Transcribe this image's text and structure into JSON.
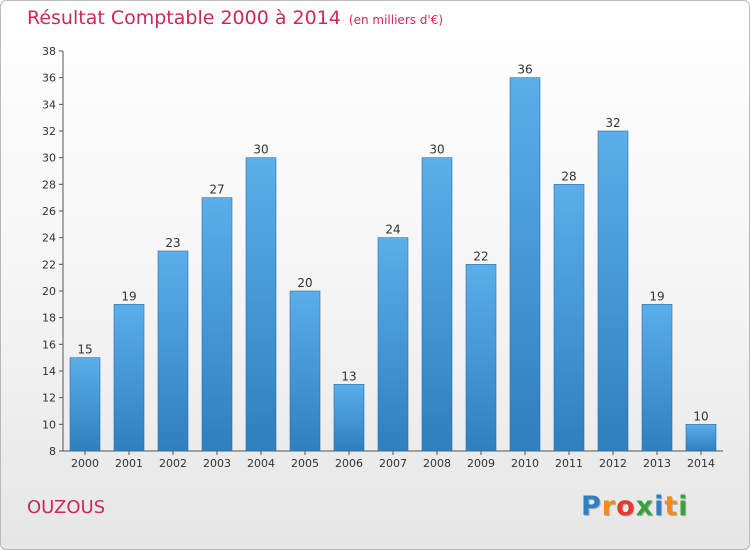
{
  "title": "Résultat Comptable 2000 à 2014",
  "subtitle": "(en milliers d'€)",
  "commune": "OUZOUS",
  "logo": {
    "letters": [
      "P",
      "r",
      "o",
      "x",
      "i",
      "t",
      "i"
    ],
    "colors": [
      "#2e7fc6",
      "#f08a1c",
      "#e23b2e",
      "#3aa13a",
      "#2e7fc6",
      "#f08a1c",
      "#3aa13a"
    ]
  },
  "colors": {
    "bar_top": "#5aaeea",
    "bar_bottom": "#2f7fc0",
    "bar_edge": "#2a6fa8",
    "axis": "#555555",
    "title": "#cc2a56"
  },
  "chart_data": {
    "type": "bar",
    "title": "Résultat Comptable 2000 à 2014",
    "subtitle": "(en milliers d'€)",
    "categories": [
      "2000",
      "2001",
      "2002",
      "2003",
      "2004",
      "2005",
      "2006",
      "2007",
      "2008",
      "2009",
      "2010",
      "2011",
      "2012",
      "2013",
      "2014"
    ],
    "values": [
      15,
      19,
      23,
      27,
      30,
      20,
      13,
      24,
      30,
      22,
      36,
      28,
      32,
      19,
      10
    ],
    "ylim": [
      8,
      38
    ],
    "yticks": [
      8,
      10,
      12,
      14,
      16,
      18,
      20,
      22,
      24,
      26,
      28,
      30,
      32,
      34,
      36,
      38
    ],
    "grid": false,
    "legend": "none",
    "xlabel": "",
    "ylabel": ""
  }
}
